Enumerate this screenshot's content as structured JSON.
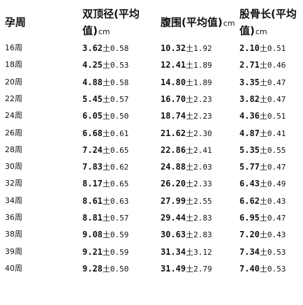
{
  "headers": {
    "week": "孕周",
    "bpd_line1": "双顶径(平均",
    "bpd_line2": "值)",
    "bpd_unit": "cm",
    "ac_line1": "腹围(平均值)",
    "ac_unit": "cm",
    "fl_line1": "股骨长(平均",
    "fl_line2": "值)",
    "fl_unit": "cm"
  },
  "rows": [
    {
      "week": "16周",
      "bpd_mean": "3.62",
      "bpd_sd": "土0.58",
      "ac_mean": "10.32",
      "ac_sd": "土1.92",
      "fl_mean": "2.10",
      "fl_sd": "土0.51"
    },
    {
      "week": "18周",
      "bpd_mean": "4.25",
      "bpd_sd": "土0.53",
      "ac_mean": "12.41",
      "ac_sd": "土1.89",
      "fl_mean": "2.71",
      "fl_sd": "土0.46"
    },
    {
      "week": "20周",
      "bpd_mean": "4.88",
      "bpd_sd": "土0.58",
      "ac_mean": "14.80",
      "ac_sd": "土1.89",
      "fl_mean": "3.35",
      "fl_sd": "土0.47"
    },
    {
      "week": "22周",
      "bpd_mean": "5.45",
      "bpd_sd": "土0.57",
      "ac_mean": "16.70",
      "ac_sd": "土2.23",
      "fl_mean": "3.82",
      "fl_sd": "土0.47"
    },
    {
      "week": "24周",
      "bpd_mean": "6.05",
      "bpd_sd": "土0.50",
      "ac_mean": "18.74",
      "ac_sd": "土2.23",
      "fl_mean": "4.36",
      "fl_sd": "土0.51"
    },
    {
      "week": "26周",
      "bpd_mean": "6.68",
      "bpd_sd": "土0.61",
      "ac_mean": "21.62",
      "ac_sd": "土2.30",
      "fl_mean": "4.87",
      "fl_sd": "土0.41"
    },
    {
      "week": "28周",
      "bpd_mean": "7.24",
      "bpd_sd": "土0.65",
      "ac_mean": "22.86",
      "ac_sd": "土2.41",
      "fl_mean": "5.35",
      "fl_sd": "土0.55"
    },
    {
      "week": "30周",
      "bpd_mean": "7.83",
      "bpd_sd": "土0.62",
      "ac_mean": "24.88",
      "ac_sd": "土2.03",
      "fl_mean": "5.77",
      "fl_sd": "土0.47"
    },
    {
      "week": "32周",
      "bpd_mean": "8.17",
      "bpd_sd": "土0.65",
      "ac_mean": "26.20",
      "ac_sd": "土2.33",
      "fl_mean": "6.43",
      "fl_sd": "土0.49"
    },
    {
      "week": "34周",
      "bpd_mean": "8.61",
      "bpd_sd": "土0.63",
      "ac_mean": "27.99",
      "ac_sd": "土2.55",
      "fl_mean": "6.62",
      "fl_sd": "土0.43"
    },
    {
      "week": "36周",
      "bpd_mean": "8.81",
      "bpd_sd": "土0.57",
      "ac_mean": "29.44",
      "ac_sd": "土2.83",
      "fl_mean": "6.95",
      "fl_sd": "土0.47"
    },
    {
      "week": "38周",
      "bpd_mean": "9.08",
      "bpd_sd": "土0.59",
      "ac_mean": "30.63",
      "ac_sd": "土2.83",
      "fl_mean": "7.20",
      "fl_sd": "土0.43"
    },
    {
      "week": "39周",
      "bpd_mean": "9.21",
      "bpd_sd": "土0.59",
      "ac_mean": "31.34",
      "ac_sd": "土3.12",
      "fl_mean": "7.34",
      "fl_sd": "土0.53"
    },
    {
      "week": "40周",
      "bpd_mean": "9.28",
      "bpd_sd": "土0.50",
      "ac_mean": "31.49",
      "ac_sd": "土2.79",
      "fl_mean": "7.40",
      "fl_sd": "土0.53"
    }
  ]
}
